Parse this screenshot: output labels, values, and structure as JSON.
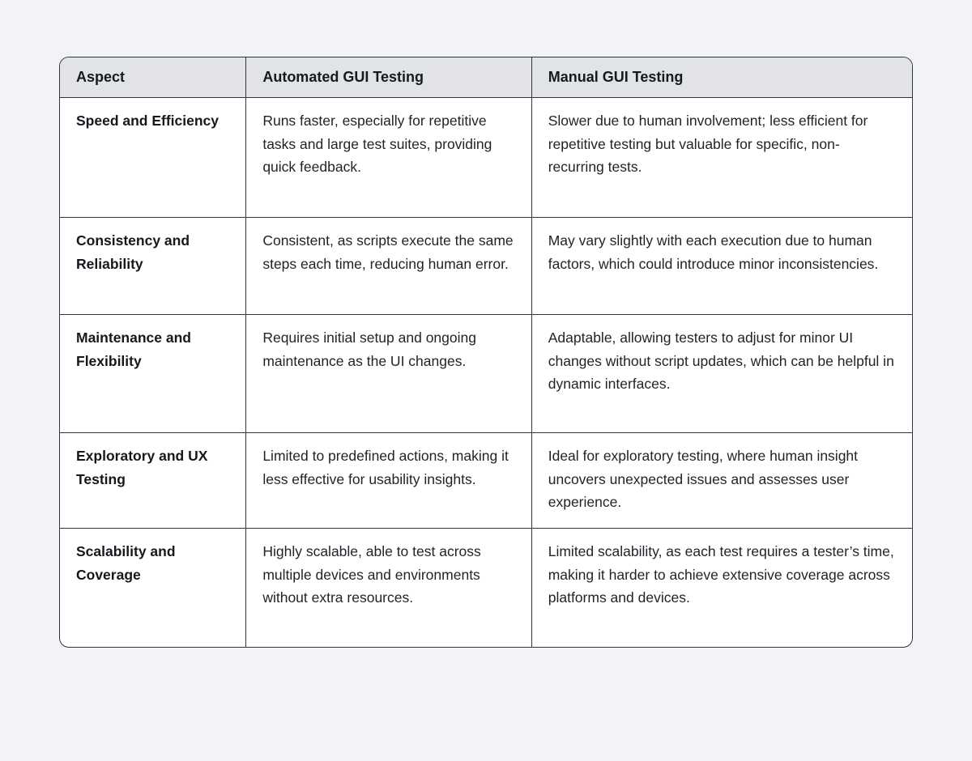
{
  "table": {
    "headers": {
      "aspect": "Aspect",
      "automated": "Automated GUI Testing",
      "manual": "Manual GUI Testing"
    },
    "rows": [
      {
        "aspect": "Speed and Efficiency",
        "automated": "Runs faster, especially for repetitive tasks and large test suites, providing quick feedback.",
        "manual": "Slower due to human involvement; less efficient for repetitive testing but valuable for specific, non-recurring tests."
      },
      {
        "aspect": "Consistency and Reliability",
        "automated": "Consistent, as scripts execute the same steps each time, reducing human error.",
        "manual": "May vary slightly with each execution due to human factors, which could introduce minor inconsistencies."
      },
      {
        "aspect": "Maintenance and Flexibility",
        "automated": "Requires initial setup and ongoing maintenance as the UI changes.",
        "manual": "Adaptable, allowing testers to adjust for minor UI changes without script updates, which can be helpful in dynamic interfaces."
      },
      {
        "aspect": "Exploratory and UX Testing",
        "automated": "Limited to predefined actions, making it less effective for usability insights.",
        "manual": "Ideal for exploratory testing, where human insight uncovers unexpected issues and assesses user experience."
      },
      {
        "aspect": "Scalability and Coverage",
        "automated": "Highly scalable, able to test across multiple devices and environments without extra resources.",
        "manual": "Limited scalability, as each test requires a tester’s time, making it harder to achieve extensive coverage across platforms and devices."
      }
    ],
    "colors": {
      "header_bg": "#e1e3e7",
      "cell_bg": "#ffffff",
      "border": "#31353b",
      "page_bg": "#f2f3f6"
    }
  }
}
